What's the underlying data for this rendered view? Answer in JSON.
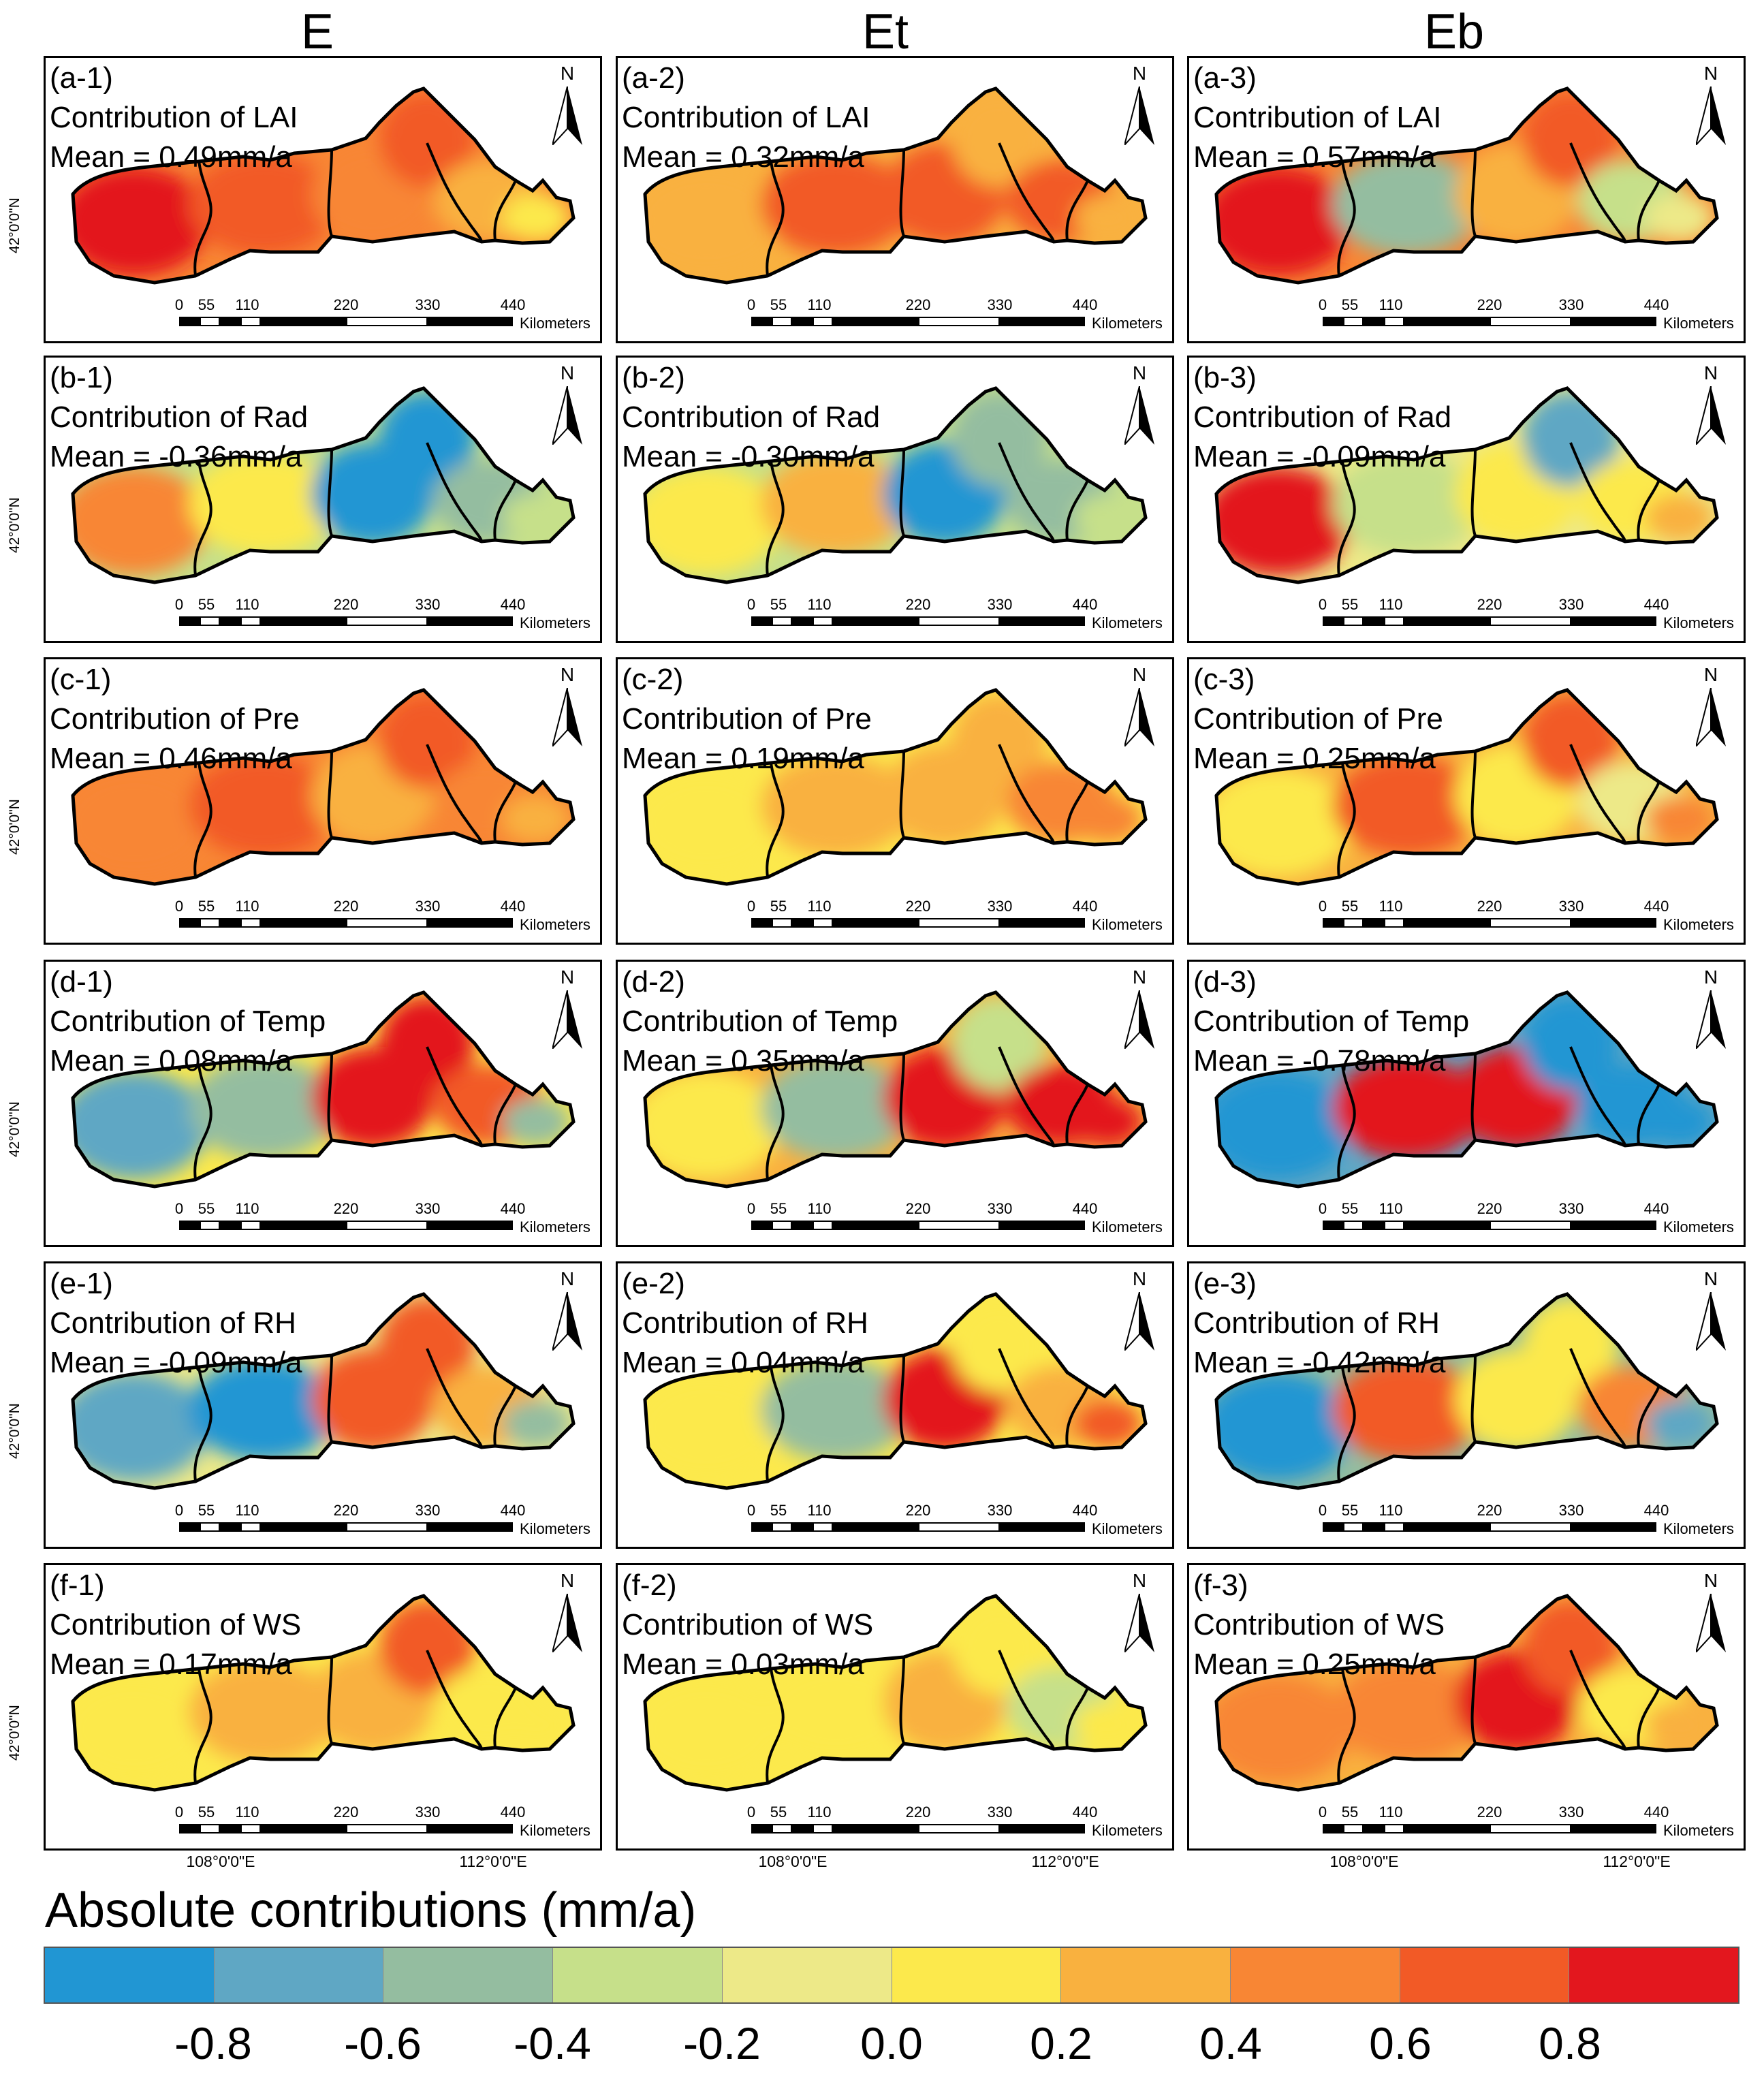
{
  "columns": [
    "E",
    "Et",
    "Eb"
  ],
  "rows": [
    {
      "variable": "LAI",
      "panels": [
        {
          "label": "(a-1)",
          "title": "Contribution of LAI",
          "mean": "Mean = 0.49mm/a",
          "mean_value": 0.49
        },
        {
          "label": "(a-2)",
          "title": "Contribution of LAI",
          "mean": "Mean = 0.32mm/a",
          "mean_value": 0.32
        },
        {
          "label": "(a-3)",
          "title": "Contribution of LAI",
          "mean": "Mean = 0.57mm/a",
          "mean_value": 0.57
        }
      ]
    },
    {
      "variable": "Rad",
      "panels": [
        {
          "label": "(b-1)",
          "title": "Contribution of Rad",
          "mean": "Mean = -0.36mm/a",
          "mean_value": -0.36
        },
        {
          "label": "(b-2)",
          "title": "Contribution of Rad",
          "mean": "Mean = -0.30mm/a",
          "mean_value": -0.3
        },
        {
          "label": "(b-3)",
          "title": "Contribution of Rad",
          "mean": "Mean = -0.09mm/a",
          "mean_value": -0.09
        }
      ]
    },
    {
      "variable": "Pre",
      "panels": [
        {
          "label": "(c-1)",
          "title": "Contribution of Pre",
          "mean": "Mean = 0.46mm/a",
          "mean_value": 0.46
        },
        {
          "label": "(c-2)",
          "title": "Contribution of Pre",
          "mean": "Mean = 0.19mm/a",
          "mean_value": 0.19
        },
        {
          "label": "(c-3)",
          "title": "Contribution of Pre",
          "mean": "Mean = 0.25mm/a",
          "mean_value": 0.25
        }
      ]
    },
    {
      "variable": "Temp",
      "panels": [
        {
          "label": "(d-1)",
          "title": "Contribution of Temp",
          "mean": "Mean = 0.08mm/a",
          "mean_value": 0.08
        },
        {
          "label": "(d-2)",
          "title": "Contribution of Temp",
          "mean": "Mean = 0.35mm/a",
          "mean_value": 0.35
        },
        {
          "label": "(d-3)",
          "title": "Contribution of Temp",
          "mean": "Mean = -0.78mm/a",
          "mean_value": -0.78
        }
      ]
    },
    {
      "variable": "RH",
      "panels": [
        {
          "label": "(e-1)",
          "title": "Contribution of RH",
          "mean": "Mean = -0.09mm/a",
          "mean_value": -0.09
        },
        {
          "label": "(e-2)",
          "title": "Contribution of RH",
          "mean": "Mean = 0.04mm/a",
          "mean_value": 0.04
        },
        {
          "label": "(e-3)",
          "title": "Contribution of RH",
          "mean": "Mean = -0.42mm/a",
          "mean_value": -0.42
        }
      ]
    },
    {
      "variable": "WS",
      "panels": [
        {
          "label": "(f-1)",
          "title": "Contribution of WS",
          "mean": "Mean = 0.17mm/a",
          "mean_value": 0.17
        },
        {
          "label": "(f-2)",
          "title": "Contribution of WS",
          "mean": "Mean = 0.03mm/a",
          "mean_value": 0.03
        },
        {
          "label": "(f-3)",
          "title": "Contribution of WS",
          "mean": "Mean = 0.25mm/a",
          "mean_value": 0.25
        }
      ]
    }
  ],
  "north_arrow": {
    "letter": "N",
    "icon": "north-arrow-icon"
  },
  "scale_bar": {
    "ticks": [
      "0",
      "55",
      "110",
      "220",
      "330",
      "440"
    ],
    "unit": "Kilometers"
  },
  "latitude_label": "42°0'0\"N",
  "longitude_labels": [
    "108°0'0\"E",
    "112°0'0\"E"
  ],
  "legend": {
    "title": "Absolute contributions (mm/a)",
    "tick_labels": [
      "-0.8",
      "-0.6",
      "-0.4",
      "-0.2",
      "0.0",
      "0.2",
      "0.4",
      "0.6",
      "0.8"
    ],
    "colors": [
      "#2196d3",
      "#5fa7c4",
      "#94bda0",
      "#c6e08a",
      "#ede988",
      "#fce94c",
      "#f9b13f",
      "#f88634",
      "#f25a26",
      "#e3171e"
    ]
  }
}
